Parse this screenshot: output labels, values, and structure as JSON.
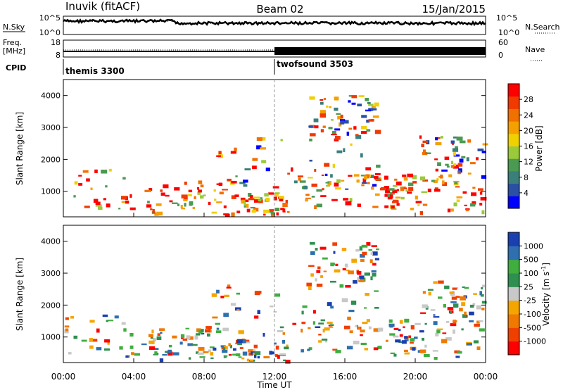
{
  "header": {
    "radar": "Inuvik  (fitACF)",
    "beam": "Beam 02",
    "date": "15/Jan/2015"
  },
  "top_panels": {
    "nsky_label": "N.Sky",
    "nsearch_label": "N.Search",
    "noise_ticks": [
      "10^5",
      "10^0"
    ],
    "freq_label_1": "Freq.",
    "freq_label_2": "[MHz]",
    "freq_ticks": [
      "18",
      "8"
    ],
    "nave_label": "Nave",
    "nave_ticks": [
      "60",
      "0"
    ],
    "cpid_label": "CPID",
    "cpid_programs": [
      {
        "name": "themis 3300",
        "start_hour": 0,
        "end_hour": 12
      },
      {
        "name": "twofsound 3503",
        "start_hour": 12,
        "end_hour": 24
      }
    ]
  },
  "chart_data": [
    {
      "type": "heatmap",
      "name": "power",
      "ylabel": "Slant Range [km]",
      "xlim": [
        0,
        24
      ],
      "ylim": [
        200,
        4500
      ],
      "yticks": [
        "1000",
        "2000",
        "3000",
        "4000"
      ],
      "colorbar": {
        "label": "Power [dB]",
        "ticks": [
          "28",
          "24",
          "20",
          "16",
          "12",
          "8",
          "4"
        ],
        "colors": [
          "#0000ff",
          "#2a4fa3",
          "#3a7f7a",
          "#4a9a52",
          "#9aca3a",
          "#f0d000",
          "#f5a000",
          "#f07000",
          "#f03a00",
          "#ff0000"
        ]
      }
    },
    {
      "type": "heatmap",
      "name": "velocity",
      "ylabel": "Slant Range [km]",
      "xlim": [
        0,
        24
      ],
      "ylim": [
        200,
        4500
      ],
      "yticks": [
        "1000",
        "2000",
        "3000",
        "4000"
      ],
      "colorbar": {
        "label": "Velocity [m s",
        "label_sup": "-1",
        "label_end": "]",
        "ticks": [
          "1000",
          "500",
          "100",
          "25",
          "-25",
          "-100",
          "-500",
          "-1000"
        ],
        "colors": [
          "#ff0000",
          "#f04000",
          "#f07a00",
          "#f5a500",
          "#c8c8c8",
          "#2f8f4f",
          "#3fae3f",
          "#2f6faf",
          "#1a3fb0"
        ]
      }
    }
  ],
  "time_axis": {
    "label": "Time UT",
    "ticks": [
      "00:00",
      "04:00",
      "08:00",
      "12:00",
      "16:00",
      "20:00",
      "00:00"
    ]
  }
}
